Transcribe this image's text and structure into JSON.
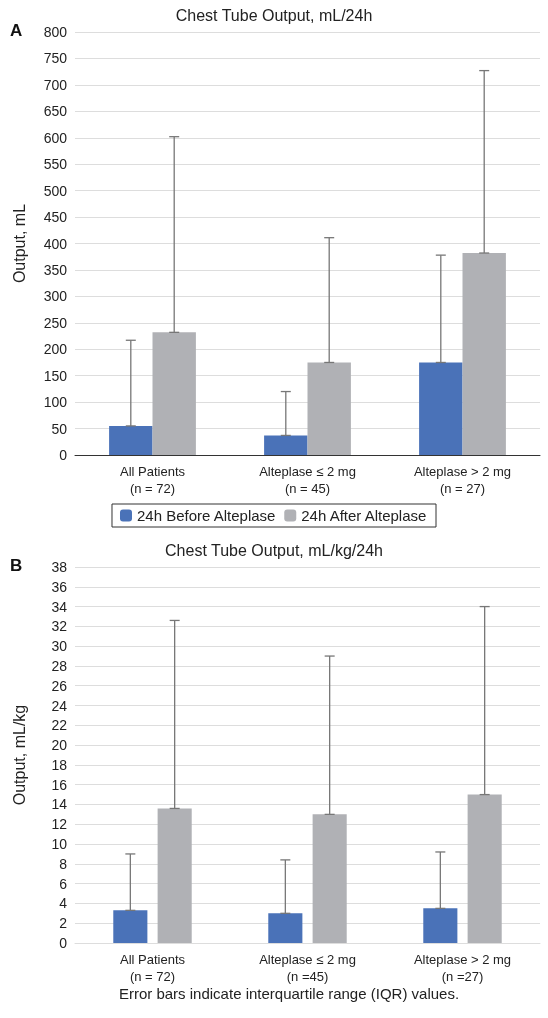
{
  "chart_data": [
    {
      "type": "bar",
      "title": "Chest Tube Output, mL/24h",
      "ylabel": "Output, mL",
      "annotations": [
        "A"
      ],
      "categories": [
        "All Patients\n(n = 72)",
        "Alteplase ≤ 2 mg\n(n = 45)",
        "Alteplase > 2 mg\n(n = 27)"
      ],
      "series": [
        {
          "name": "24h Before Alteplase",
          "color": "#4a72b8",
          "values": [
            55,
            37,
            175
          ],
          "errors": [
            [
              55,
              217
            ],
            [
              37,
              120
            ],
            [
              175,
              378
            ]
          ]
        },
        {
          "name": "24h After Alteplase",
          "color": "#b0b1b5",
          "values": [
            232,
            175,
            382
          ],
          "errors": [
            [
              232,
              602
            ],
            [
              175,
              411
            ],
            [
              382,
              727
            ]
          ]
        }
      ],
      "ylim": [
        0,
        800
      ],
      "yticks": [
        0,
        50,
        100,
        150,
        200,
        250,
        300,
        350,
        400,
        450,
        500,
        550,
        600,
        650,
        700,
        750,
        800
      ],
      "grid": "y",
      "legend": "bottom"
    },
    {
      "type": "bar",
      "title": "Chest Tube Output, mL/kg/24h",
      "ylabel": "Output, mL/kg",
      "annotations": [
        "B",
        "Error bars indicate interquartile range (IQR) values."
      ],
      "categories": [
        "All Patients\n(n = 72)",
        "Alteplase ≤ 2 mg\n(n =45)",
        "Alteplase > 2 mg\n(n =27)"
      ],
      "series": [
        {
          "color": "#4a72b8",
          "values": [
            3.3,
            3.0,
            3.5
          ],
          "errors": [
            [
              3.3,
              9.0
            ],
            [
              3.0,
              8.4
            ],
            [
              3.5,
              9.2
            ]
          ]
        },
        {
          "color": "#b0b1b5",
          "values": [
            13.6,
            13.0,
            15.0
          ],
          "errors": [
            [
              13.6,
              32.6
            ],
            [
              13.0,
              29.0
            ],
            [
              15.0,
              34.0
            ]
          ]
        }
      ],
      "ylim": [
        0,
        38
      ],
      "yticks": [
        0,
        2,
        4,
        6,
        8,
        10,
        12,
        14,
        16,
        18,
        20,
        22,
        24,
        26,
        28,
        30,
        32,
        34,
        36,
        38
      ],
      "grid": "y",
      "legend": false
    }
  ]
}
